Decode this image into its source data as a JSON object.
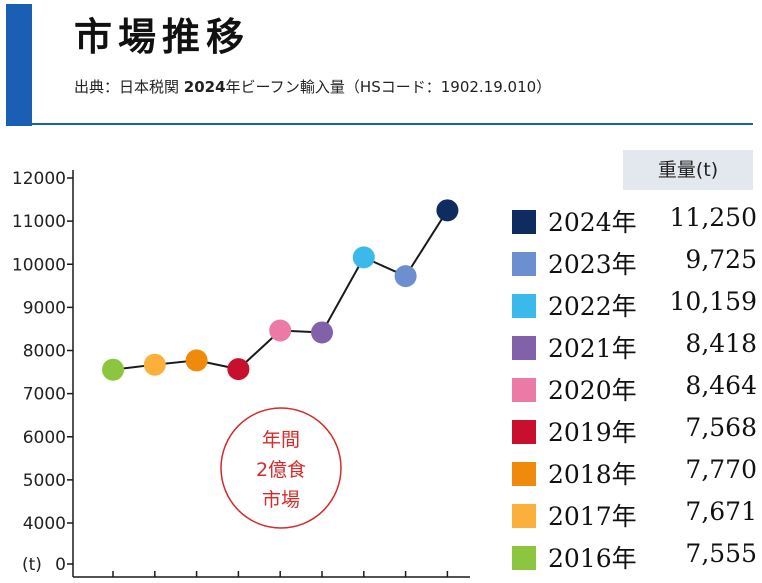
{
  "header": {
    "title": "市場推移",
    "source_prefix": "出典：日本税関 ",
    "source_bold": "2024",
    "source_suffix": "年ビーフン輸入量（HSコード：1902.19.010）"
  },
  "table": {
    "unit_header": "重量(t)"
  },
  "stamp": {
    "line1": "年間",
    "line2": "2億食",
    "line3": "市場"
  },
  "colors": {
    "accent": "#1a5fb4",
    "line": "#1a1a1a",
    "stamp": "#d62b2b",
    "years": {
      "2016": "#8cc63f",
      "2017": "#fbb03b",
      "2018": "#f08a0c",
      "2019": "#c8102e",
      "2020": "#ec7aa7",
      "2021": "#8161a8",
      "2022": "#3ab9ea",
      "2023": "#6b8fcf",
      "2024": "#0e2c5f"
    }
  },
  "chart_data": {
    "type": "line",
    "title": "市場推移",
    "ylabel": "(t)",
    "ylim": [
      0,
      12000
    ],
    "yticks": [
      "0",
      "4000",
      "5000",
      "6000",
      "7000",
      "8000",
      "9000",
      "10000",
      "11000",
      "12000"
    ],
    "y_axis_break": true,
    "categories": [
      "2016年",
      "2017年",
      "2018年",
      "2019年",
      "2020年",
      "2021年",
      "2022年",
      "2023年",
      "2024年"
    ],
    "values": [
      7555,
      7671,
      7770,
      7568,
      8464,
      8418,
      10159,
      9725,
      11250
    ],
    "values_display": [
      "7,555",
      "7,671",
      "7,770",
      "7,568",
      "8,464",
      "8,418",
      "10,159",
      "9,725",
      "11,250"
    ],
    "legend_order": [
      8,
      7,
      6,
      5,
      4,
      3,
      2,
      1,
      0
    ]
  }
}
